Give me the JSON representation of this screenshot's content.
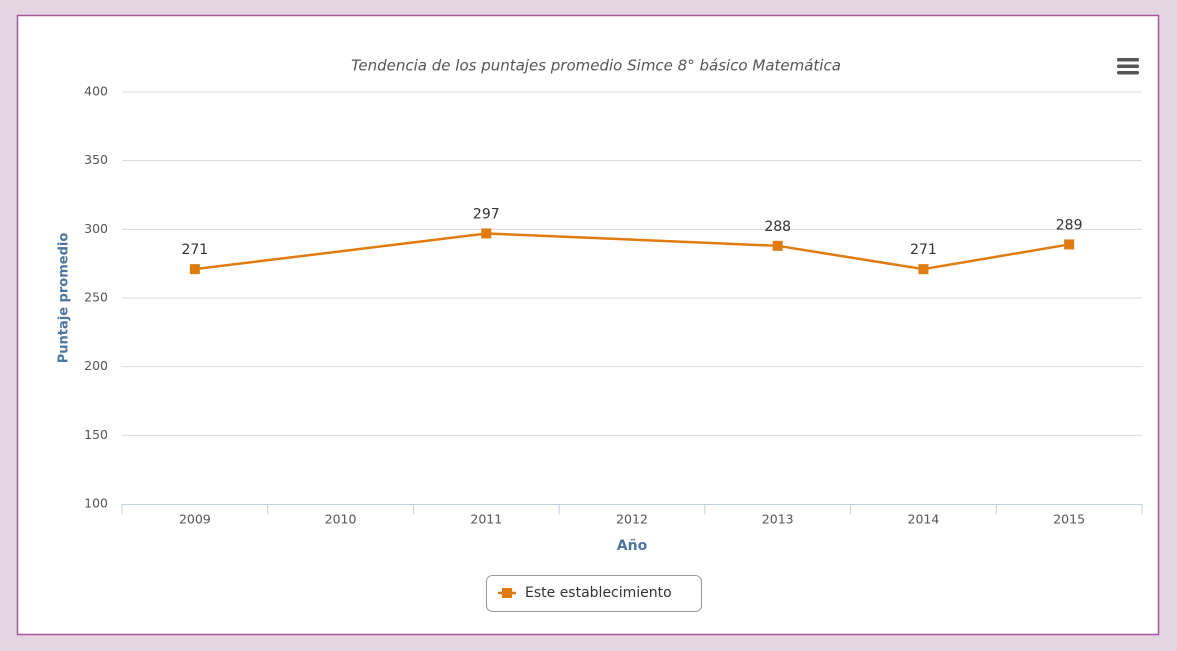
{
  "chart_data": {
    "type": "line",
    "title": "Tendencia de los puntajes promedio Simce 8° básico Matemática",
    "ylabel": "Puntaje promedio",
    "xlabel": "Año",
    "categories": [
      "2009",
      "2010",
      "2011",
      "2012",
      "2013",
      "2014",
      "2015"
    ],
    "series": [
      {
        "name": "Este establecimiento",
        "color": "#e07b10",
        "values": [
          271,
          null,
          297,
          null,
          288,
          271,
          289
        ]
      }
    ],
    "ylim": [
      100,
      400
    ],
    "yticks": [
      100,
      150,
      200,
      250,
      300,
      350,
      400
    ],
    "grid": true,
    "connect_nulls": true,
    "data_labels": true,
    "legend": "bottom"
  }
}
